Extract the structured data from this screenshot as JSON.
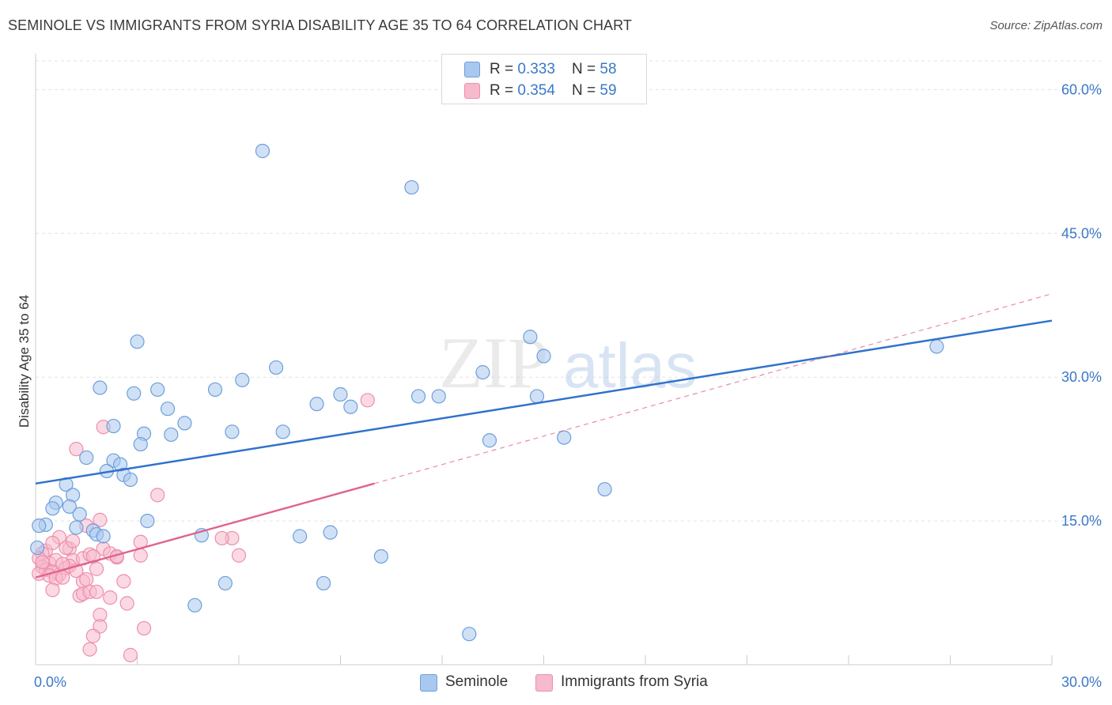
{
  "title": "SEMINOLE VS IMMIGRANTS FROM SYRIA DISABILITY AGE 35 TO 64 CORRELATION CHART",
  "source": "Source: ZipAtlas.com",
  "legend": {
    "rows": [
      {
        "r_label": "R = ",
        "r_value": "0.333",
        "n_label": "N = ",
        "n_value": "58"
      },
      {
        "r_label": "R = ",
        "r_value": "0.354",
        "n_label": "N = ",
        "n_value": "59"
      }
    ]
  },
  "watermark": {
    "zip": "ZIP",
    "atlas": "atlas"
  },
  "colors": {
    "seminole_fill": "#a9c8ef",
    "seminole_stroke": "#6d9fdc",
    "seminole_line": "#2f72cc",
    "syria_fill": "#f7b9cc",
    "syria_stroke": "#ec8fae",
    "syria_line": "#e0648d",
    "axis_label": "#3b78c8",
    "grid": "#e3e3e3"
  },
  "chart_data": {
    "type": "scatter",
    "title": "SEMINOLE VS IMMIGRANTS FROM SYRIA DISABILITY AGE 35 TO 64 CORRELATION CHART",
    "xlabel": "",
    "ylabel": "Disability Age 35 to 64",
    "xlim": [
      0,
      30
    ],
    "ylim": [
      0,
      63
    ],
    "x_tick_labels": [
      "0.0%",
      "30.0%"
    ],
    "y_ticks": [
      15,
      30,
      45,
      60
    ],
    "y_tick_labels": [
      "15.0%",
      "30.0%",
      "45.0%",
      "60.0%"
    ],
    "grid": true,
    "legend_position": "top-center",
    "series": [
      {
        "name": "Seminole",
        "points": [
          [
            6.7,
            53.6
          ],
          [
            11.1,
            49.8
          ],
          [
            3.0,
            33.7
          ],
          [
            14.6,
            34.2
          ],
          [
            26.6,
            33.2
          ],
          [
            15.0,
            32.2
          ],
          [
            7.1,
            31.0
          ],
          [
            13.2,
            30.5
          ],
          [
            6.1,
            29.7
          ],
          [
            1.9,
            28.9
          ],
          [
            3.6,
            28.7
          ],
          [
            5.3,
            28.7
          ],
          [
            2.9,
            28.3
          ],
          [
            9.0,
            28.2
          ],
          [
            11.3,
            28.0
          ],
          [
            11.9,
            28.0
          ],
          [
            14.8,
            28.0
          ],
          [
            8.3,
            27.2
          ],
          [
            9.3,
            26.9
          ],
          [
            3.9,
            26.7
          ],
          [
            4.4,
            25.2
          ],
          [
            2.3,
            24.9
          ],
          [
            5.8,
            24.3
          ],
          [
            7.3,
            24.3
          ],
          [
            3.2,
            24.1
          ],
          [
            4.0,
            24.0
          ],
          [
            3.1,
            23.0
          ],
          [
            13.4,
            23.4
          ],
          [
            15.6,
            23.7
          ],
          [
            1.5,
            21.6
          ],
          [
            2.3,
            21.3
          ],
          [
            2.5,
            20.9
          ],
          [
            2.1,
            20.2
          ],
          [
            2.6,
            19.8
          ],
          [
            2.8,
            19.3
          ],
          [
            0.9,
            18.8
          ],
          [
            16.8,
            18.3
          ],
          [
            1.1,
            17.7
          ],
          [
            0.6,
            16.9
          ],
          [
            0.5,
            16.3
          ],
          [
            1.0,
            16.5
          ],
          [
            1.3,
            15.7
          ],
          [
            3.3,
            15.0
          ],
          [
            0.3,
            14.6
          ],
          [
            0.1,
            14.5
          ],
          [
            1.2,
            14.3
          ],
          [
            1.7,
            14.0
          ],
          [
            1.8,
            13.6
          ],
          [
            2.0,
            13.4
          ],
          [
            4.9,
            13.5
          ],
          [
            7.8,
            13.4
          ],
          [
            8.7,
            13.8
          ],
          [
            10.2,
            11.3
          ],
          [
            0.05,
            12.2
          ],
          [
            5.6,
            8.5
          ],
          [
            8.5,
            8.5
          ],
          [
            4.7,
            6.2
          ],
          [
            12.8,
            3.2
          ]
        ]
      },
      {
        "name": "Immigrants from Syria",
        "points": [
          [
            9.8,
            27.6
          ],
          [
            2.0,
            24.8
          ],
          [
            1.2,
            22.5
          ],
          [
            3.6,
            17.7
          ],
          [
            0.7,
            13.3
          ],
          [
            1.9,
            15.1
          ],
          [
            1.5,
            14.5
          ],
          [
            3.1,
            12.8
          ],
          [
            5.8,
            13.2
          ],
          [
            5.5,
            13.2
          ],
          [
            2.0,
            12.1
          ],
          [
            1.0,
            12.1
          ],
          [
            0.3,
            11.9
          ],
          [
            0.2,
            11.6
          ],
          [
            0.1,
            11.1
          ],
          [
            0.4,
            10.6
          ],
          [
            0.6,
            10.9
          ],
          [
            1.1,
            10.9
          ],
          [
            1.4,
            11.1
          ],
          [
            1.6,
            11.5
          ],
          [
            1.7,
            11.3
          ],
          [
            2.2,
            11.6
          ],
          [
            2.4,
            11.2
          ],
          [
            6.0,
            11.4
          ],
          [
            0.2,
            10.2
          ],
          [
            0.3,
            9.9
          ],
          [
            0.5,
            9.7
          ],
          [
            0.7,
            9.4
          ],
          [
            0.9,
            10.1
          ],
          [
            1.0,
            10.3
          ],
          [
            1.8,
            10.0
          ],
          [
            0.1,
            9.5
          ],
          [
            0.4,
            9.3
          ],
          [
            0.6,
            9.0
          ],
          [
            0.8,
            9.1
          ],
          [
            1.4,
            8.7
          ],
          [
            0.5,
            7.8
          ],
          [
            1.3,
            7.2
          ],
          [
            1.4,
            7.4
          ],
          [
            1.6,
            7.6
          ],
          [
            1.8,
            7.6
          ],
          [
            2.2,
            7.0
          ],
          [
            2.6,
            8.7
          ],
          [
            0.9,
            12.2
          ],
          [
            2.7,
            6.4
          ],
          [
            1.9,
            5.2
          ],
          [
            1.9,
            4.0
          ],
          [
            3.2,
            3.8
          ],
          [
            1.7,
            3.0
          ],
          [
            1.6,
            1.6
          ],
          [
            2.8,
            1.0
          ],
          [
            0.5,
            12.7
          ],
          [
            1.2,
            9.8
          ],
          [
            1.5,
            8.9
          ],
          [
            0.2,
            10.7
          ],
          [
            2.4,
            11.3
          ],
          [
            0.8,
            10.5
          ],
          [
            3.1,
            11.4
          ],
          [
            1.1,
            12.9
          ]
        ]
      }
    ],
    "trend_lines": [
      {
        "series": "Seminole",
        "x": [
          0,
          30
        ],
        "y": [
          18.9,
          35.9
        ]
      },
      {
        "series": "Immigrants from Syria",
        "x": [
          0,
          10
        ],
        "y": [
          9.1,
          18.9
        ],
        "dashed_extension_to": [
          30,
          38.7
        ]
      }
    ]
  },
  "bottom_legend": [
    {
      "label": "Seminole"
    },
    {
      "label": "Immigrants from Syria"
    }
  ]
}
